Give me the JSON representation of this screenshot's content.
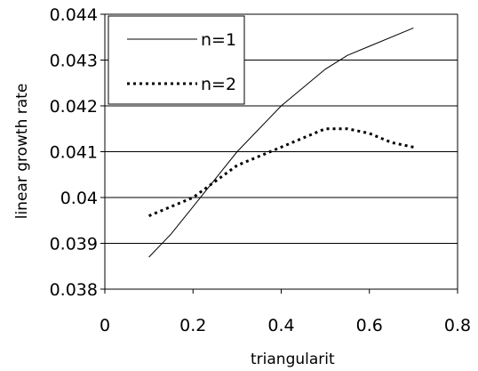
{
  "chart_data": {
    "type": "line",
    "title": "",
    "xlabel": "triangularit",
    "ylabel": "linear growth rate",
    "xlim": [
      0,
      0.8
    ],
    "ylim": [
      0.038,
      0.044
    ],
    "x_ticks": [
      "0",
      "0.2",
      "0.4",
      "0.6",
      "0.8"
    ],
    "y_ticks": [
      "0.038",
      "0.039",
      "0.04",
      "0.041",
      "0.042",
      "0.043",
      "0.044"
    ],
    "grid": "horizontal",
    "legend_position": "top-left",
    "series": [
      {
        "name": "n=1",
        "style": "solid",
        "x": [
          0.1,
          0.15,
          0.2,
          0.3,
          0.4,
          0.5,
          0.55,
          0.6,
          0.7
        ],
        "y": [
          0.0387,
          0.0392,
          0.0398,
          0.041,
          0.042,
          0.0428,
          0.0431,
          0.0433,
          0.0437
        ]
      },
      {
        "name": "n=2",
        "style": "dotted",
        "x": [
          0.1,
          0.2,
          0.3,
          0.4,
          0.45,
          0.5,
          0.55,
          0.6,
          0.65,
          0.7
        ],
        "y": [
          0.0396,
          0.04,
          0.0407,
          0.0411,
          0.0413,
          0.0415,
          0.0415,
          0.0414,
          0.0412,
          0.0411
        ]
      }
    ],
    "colors": {
      "line": "#000000",
      "grid": "#000000",
      "background": "#ffffff"
    }
  }
}
